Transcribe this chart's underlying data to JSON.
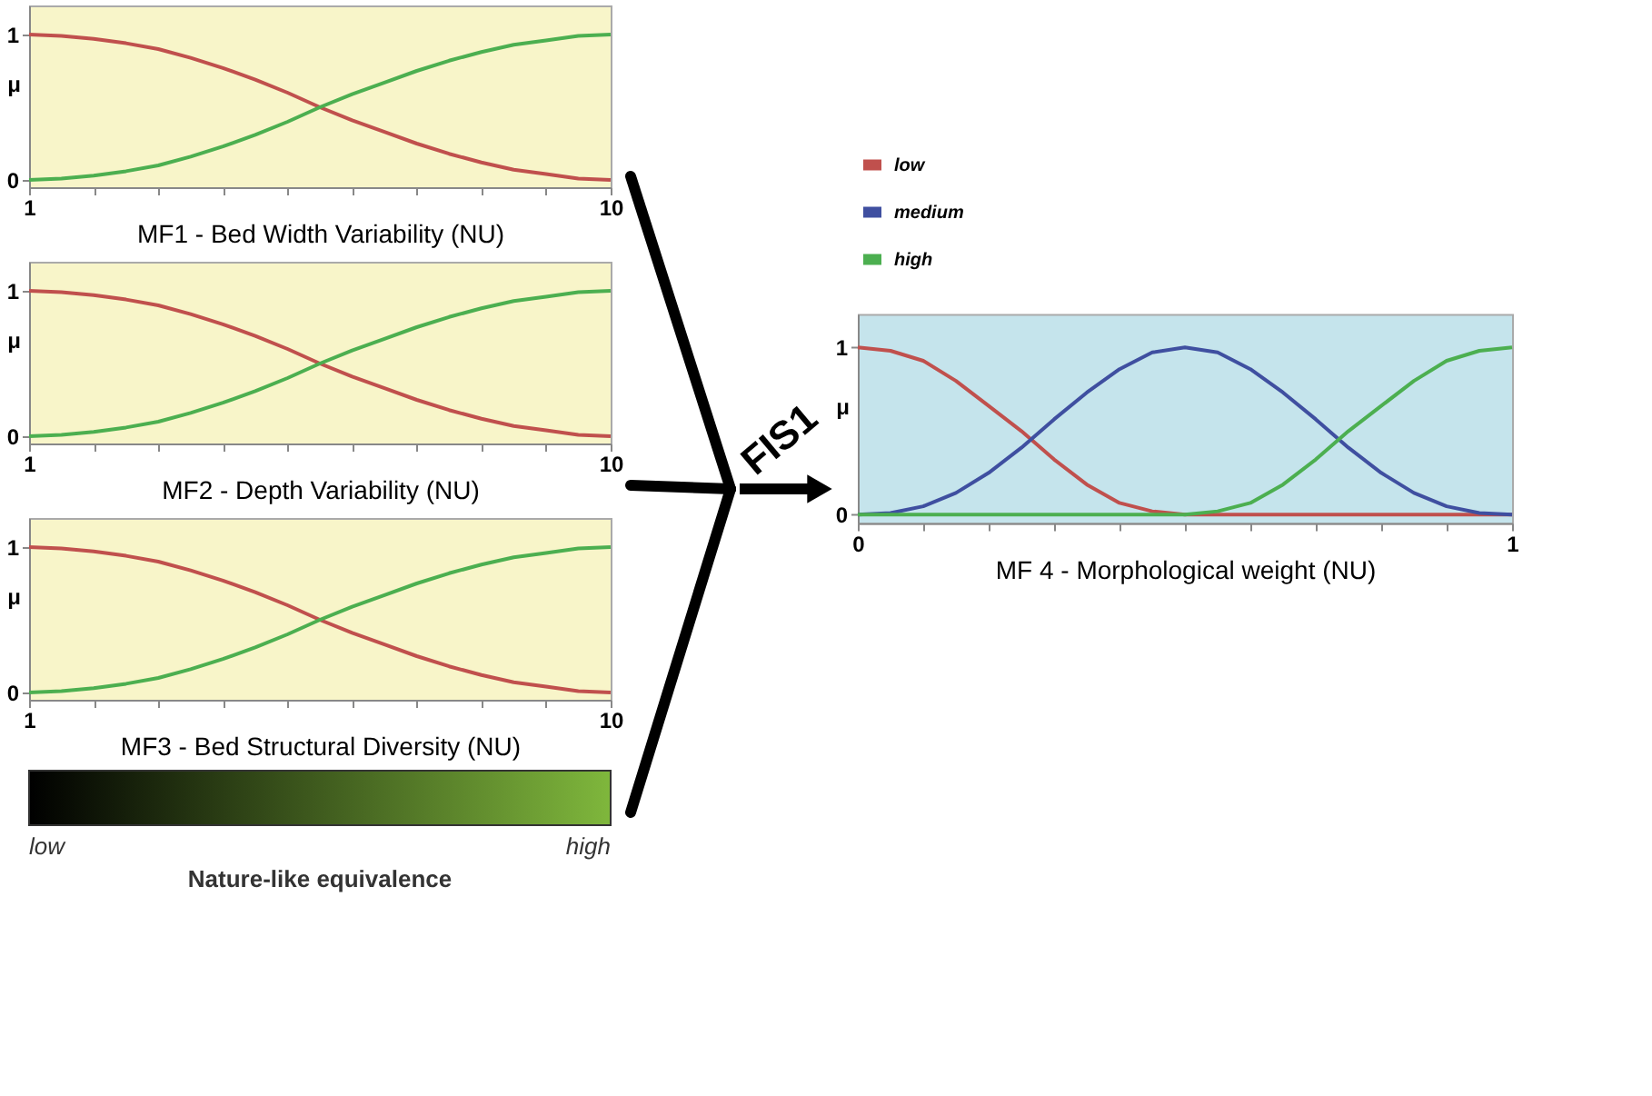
{
  "chart_data": [
    {
      "type": "line",
      "xlabel": "MF1 - Bed Width Variability (NU)",
      "x": [
        1,
        1.5,
        2,
        2.5,
        3,
        3.5,
        4,
        4.5,
        5,
        5.5,
        6,
        6.5,
        7,
        7.5,
        8,
        8.5,
        9,
        9.5,
        10
      ],
      "series": [
        {
          "color": "#c0504d",
          "values": [
            1,
            0.99,
            0.97,
            0.94,
            0.9,
            0.84,
            0.77,
            0.69,
            0.6,
            0.5,
            0.41,
            0.33,
            0.25,
            0.18,
            0.12,
            0.07,
            0.04,
            0.01,
            0
          ]
        },
        {
          "color": "#4caf50",
          "values": [
            0,
            0.01,
            0.03,
            0.06,
            0.1,
            0.16,
            0.23,
            0.31,
            0.4,
            0.5,
            0.59,
            0.67,
            0.75,
            0.82,
            0.88,
            0.93,
            0.96,
            0.99,
            1
          ]
        }
      ],
      "xlim": [
        1,
        10
      ],
      "xticks": [
        1,
        {
          "value": 2,
          "label": null
        },
        {
          "value": 3,
          "label": null
        },
        {
          "value": 4,
          "label": null
        },
        {
          "value": 5,
          "label": null
        },
        {
          "value": 6,
          "label": null
        },
        {
          "value": 7,
          "label": null
        },
        {
          "value": 8,
          "label": null
        },
        {
          "value": 9,
          "label": null
        },
        10
      ],
      "ylabel": "μ",
      "ylim": [
        -0.05,
        1.2
      ],
      "yticks": [
        0,
        1
      ],
      "grid": false,
      "marker": "none",
      "line_style": "solid",
      "legend": false
    },
    {
      "type": "line",
      "xlabel": "MF2 - Depth Variability (NU)",
      "x": [
        1,
        1.5,
        2,
        2.5,
        3,
        3.5,
        4,
        4.5,
        5,
        5.5,
        6,
        6.5,
        7,
        7.5,
        8,
        8.5,
        9,
        9.5,
        10
      ],
      "series": [
        {
          "color": "#c0504d",
          "values": [
            1,
            0.99,
            0.97,
            0.94,
            0.9,
            0.84,
            0.77,
            0.69,
            0.6,
            0.5,
            0.41,
            0.33,
            0.25,
            0.18,
            0.12,
            0.07,
            0.04,
            0.01,
            0
          ]
        },
        {
          "color": "#4caf50",
          "values": [
            0,
            0.01,
            0.03,
            0.06,
            0.1,
            0.16,
            0.23,
            0.31,
            0.4,
            0.5,
            0.59,
            0.67,
            0.75,
            0.82,
            0.88,
            0.93,
            0.96,
            0.99,
            1
          ]
        }
      ],
      "xlim": [
        1,
        10
      ],
      "xticks": [
        1,
        {
          "value": 2,
          "label": null
        },
        {
          "value": 3,
          "label": null
        },
        {
          "value": 4,
          "label": null
        },
        {
          "value": 5,
          "label": null
        },
        {
          "value": 6,
          "label": null
        },
        {
          "value": 7,
          "label": null
        },
        {
          "value": 8,
          "label": null
        },
        {
          "value": 9,
          "label": null
        },
        10
      ],
      "ylabel": "μ",
      "ylim": [
        -0.05,
        1.2
      ],
      "yticks": [
        0,
        1
      ],
      "grid": false,
      "marker": "none",
      "line_style": "solid",
      "legend": false
    },
    {
      "type": "line",
      "xlabel": "MF3 - Bed Structural Diversity (NU)",
      "x": [
        1,
        1.5,
        2,
        2.5,
        3,
        3.5,
        4,
        4.5,
        5,
        5.5,
        6,
        6.5,
        7,
        7.5,
        8,
        8.5,
        9,
        9.5,
        10
      ],
      "series": [
        {
          "color": "#c0504d",
          "values": [
            1,
            0.99,
            0.97,
            0.94,
            0.9,
            0.84,
            0.77,
            0.69,
            0.6,
            0.5,
            0.41,
            0.33,
            0.25,
            0.18,
            0.12,
            0.07,
            0.04,
            0.01,
            0
          ]
        },
        {
          "color": "#4caf50",
          "values": [
            0,
            0.01,
            0.03,
            0.06,
            0.1,
            0.16,
            0.23,
            0.31,
            0.4,
            0.5,
            0.59,
            0.67,
            0.75,
            0.82,
            0.88,
            0.93,
            0.96,
            0.99,
            1
          ]
        }
      ],
      "xlim": [
        1,
        10
      ],
      "xticks": [
        1,
        {
          "value": 2,
          "label": null
        },
        {
          "value": 3,
          "label": null
        },
        {
          "value": 4,
          "label": null
        },
        {
          "value": 5,
          "label": null
        },
        {
          "value": 6,
          "label": null
        },
        {
          "value": 7,
          "label": null
        },
        {
          "value": 8,
          "label": null
        },
        {
          "value": 9,
          "label": null
        },
        10
      ],
      "ylabel": "μ",
      "ylim": [
        -0.05,
        1.2
      ],
      "yticks": [
        0,
        1
      ],
      "grid": false,
      "marker": "none",
      "line_style": "solid",
      "legend": false,
      "annotations": [
        "low",
        "high",
        "Nature-like equivalence"
      ]
    },
    {
      "type": "line",
      "xlabel": "MF 4 - Morphological weight (NU)",
      "x": [
        0,
        0.05,
        0.1,
        0.15,
        0.2,
        0.25,
        0.3,
        0.35,
        0.4,
        0.45,
        0.5,
        0.55,
        0.6,
        0.65,
        0.7,
        0.75,
        0.8,
        0.85,
        0.9,
        0.95,
        1
      ],
      "series": [
        {
          "name": "low",
          "color": "#c0504d",
          "values": [
            1,
            0.98,
            0.92,
            0.8,
            0.65,
            0.5,
            0.33,
            0.18,
            0.07,
            0.02,
            0,
            0,
            0,
            0,
            0,
            0,
            0,
            0,
            0,
            0,
            0
          ]
        },
        {
          "name": "medium",
          "color": "#3f4fa0",
          "values": [
            0,
            0.01,
            0.05,
            0.13,
            0.25,
            0.4,
            0.57,
            0.73,
            0.87,
            0.97,
            1,
            0.97,
            0.87,
            0.73,
            0.57,
            0.4,
            0.25,
            0.13,
            0.05,
            0.01,
            0
          ]
        },
        {
          "name": "high",
          "color": "#4caf50",
          "values": [
            0,
            0,
            0,
            0,
            0,
            0,
            0,
            0,
            0,
            0,
            0,
            0.02,
            0.07,
            0.18,
            0.33,
            0.5,
            0.65,
            0.8,
            0.92,
            0.98,
            1
          ]
        }
      ],
      "xlim": [
        0,
        1
      ],
      "xticks": [
        0,
        {
          "value": 0.1,
          "label": null
        },
        {
          "value": 0.2,
          "label": null
        },
        {
          "value": 0.3,
          "label": null
        },
        {
          "value": 0.4,
          "label": null
        },
        {
          "value": 0.5,
          "label": null
        },
        {
          "value": 0.6,
          "label": null
        },
        {
          "value": 0.7,
          "label": null
        },
        {
          "value": 0.8,
          "label": null
        },
        {
          "value": 0.9,
          "label": null
        },
        1
      ],
      "ylabel": "μ",
      "ylim": [
        -0.05,
        1.2
      ],
      "yticks": [
        0,
        1
      ],
      "grid": false,
      "marker": "none",
      "line_style": "solid",
      "legend": "top",
      "annotations": [
        "FIS1"
      ]
    }
  ]
}
